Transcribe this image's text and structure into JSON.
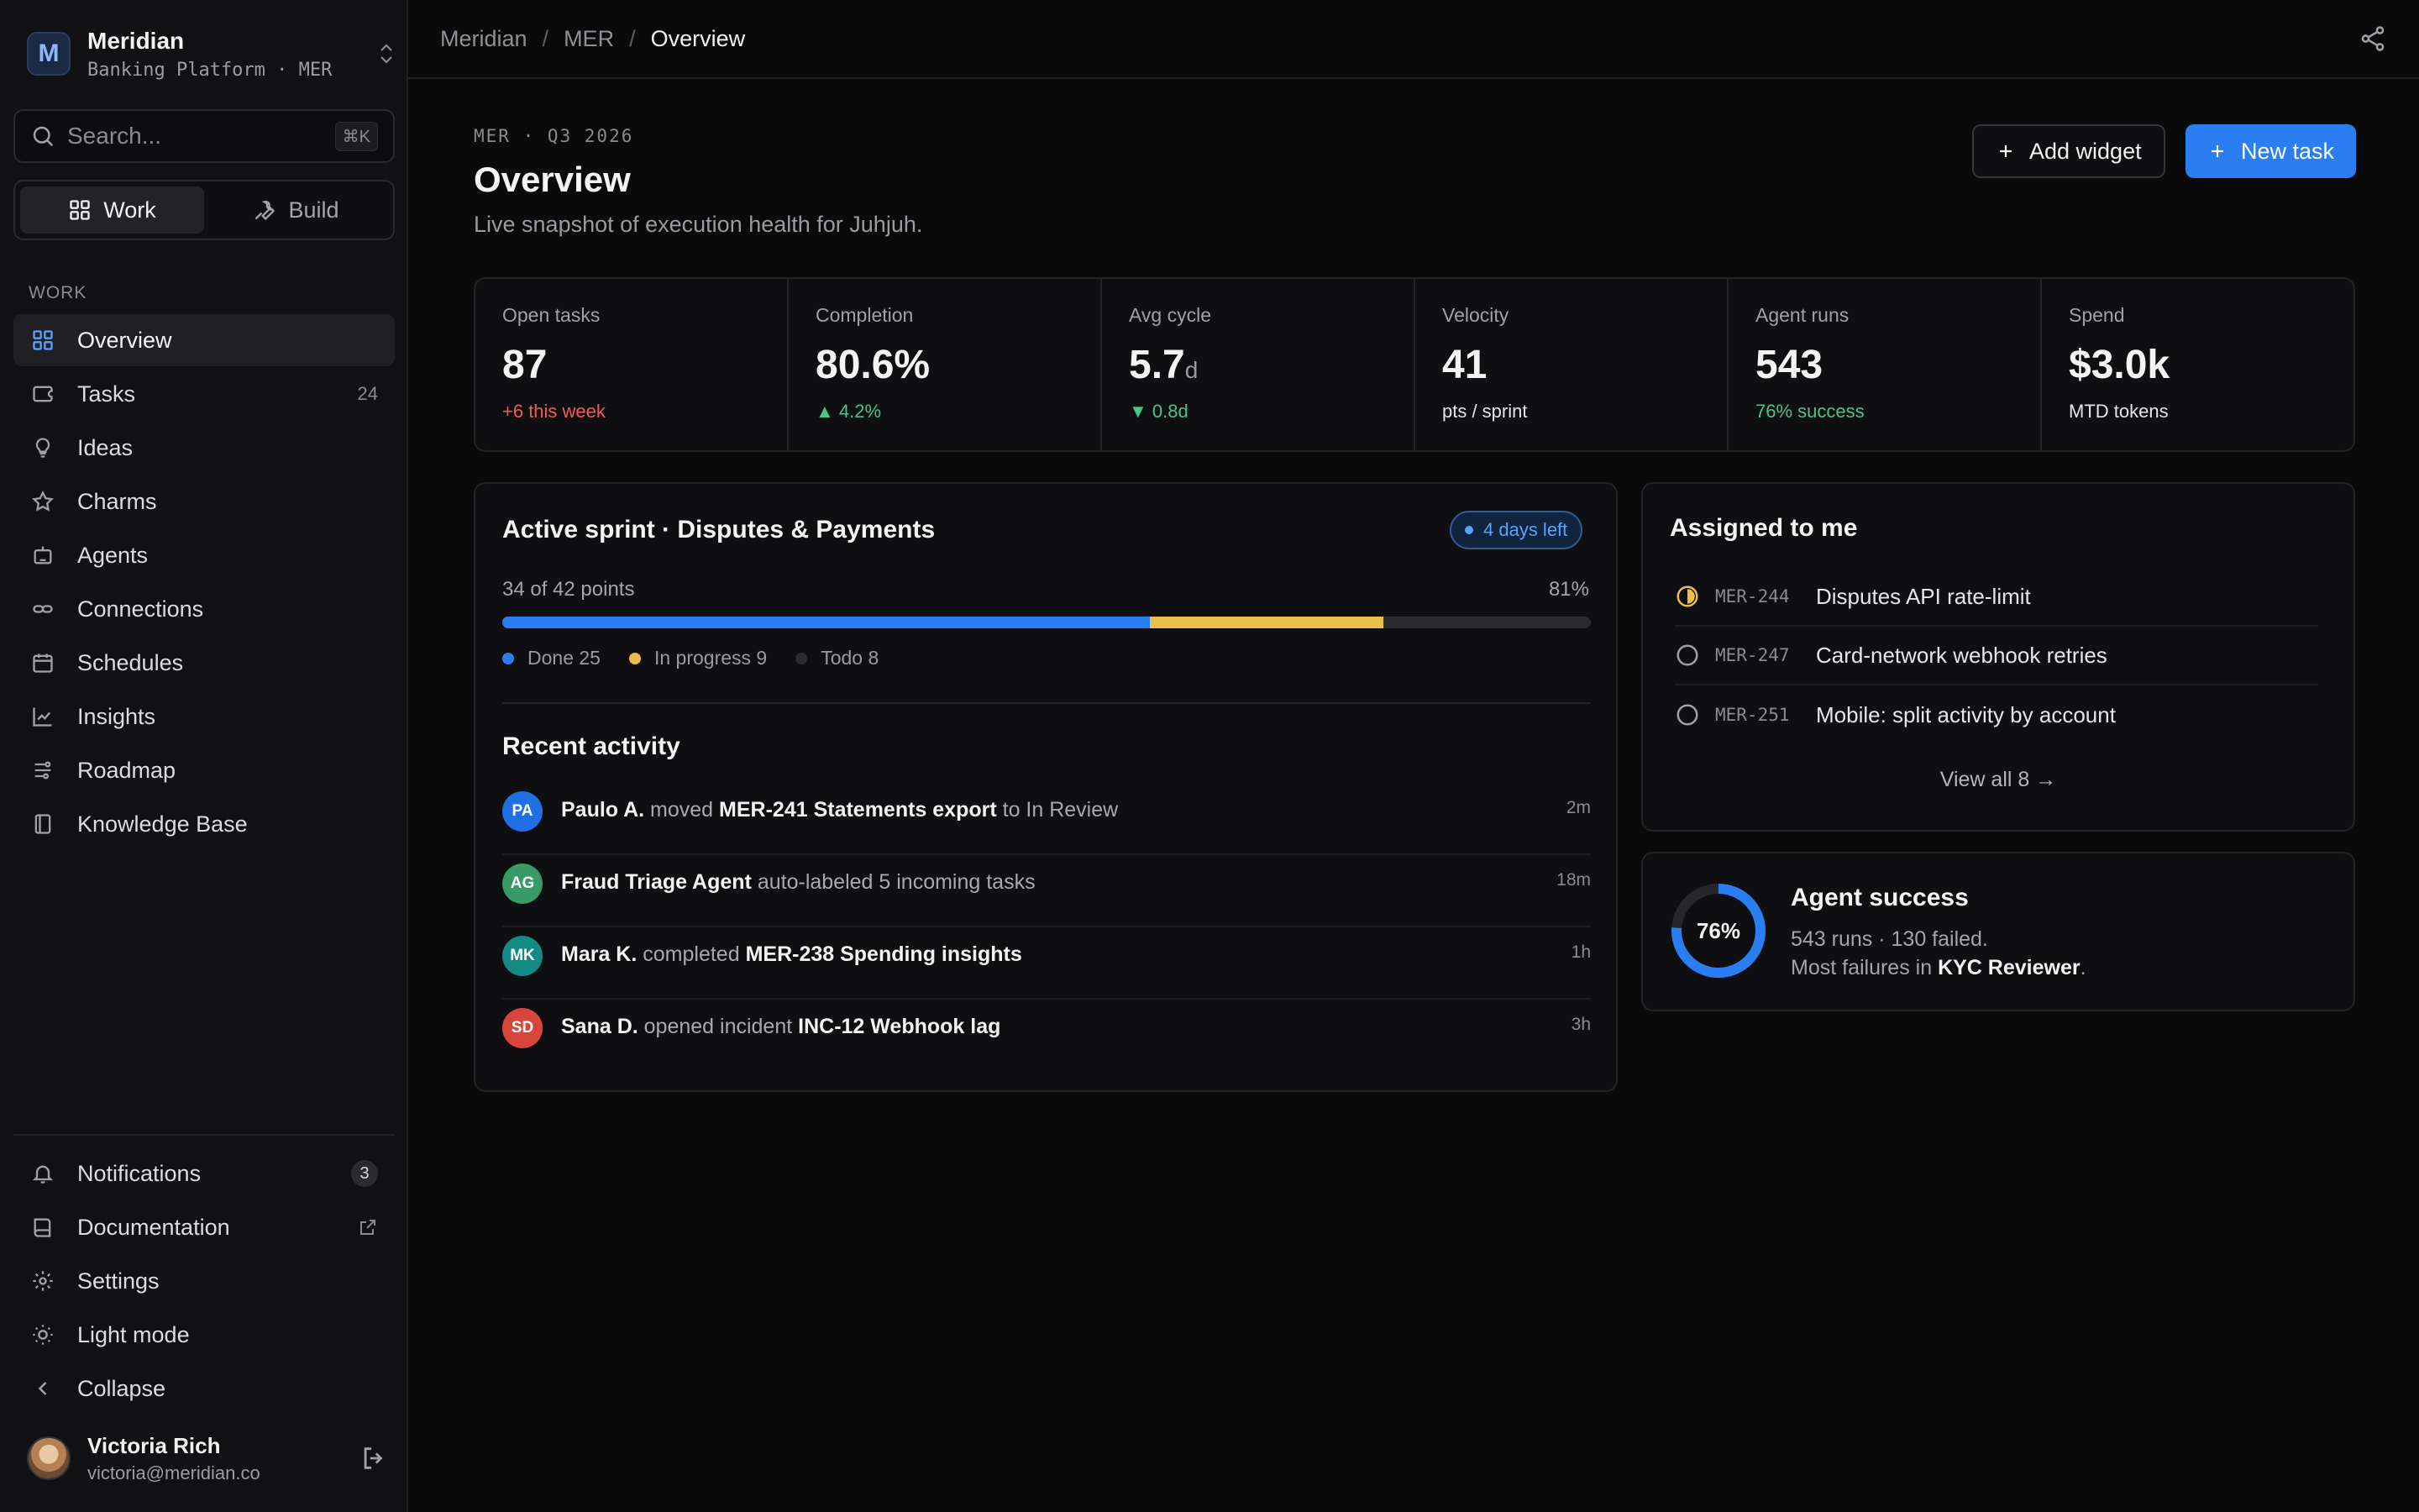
{
  "workspace": {
    "logo_letter": "M",
    "name": "Meridian",
    "subtitle": "Banking Platform · MER"
  },
  "search": {
    "placeholder": "Search...",
    "shortcut": "⌘K"
  },
  "modes": [
    {
      "label": "Work",
      "active": true,
      "icon": "grid-icon"
    },
    {
      "label": "Build",
      "active": false,
      "icon": "wrench-icon"
    }
  ],
  "nav": {
    "section_label": "WORK",
    "items": [
      {
        "label": "Overview",
        "icon": "grid-icon",
        "active": true
      },
      {
        "label": "Tasks",
        "icon": "ticket-icon",
        "count": "24"
      },
      {
        "label": "Ideas",
        "icon": "lightbulb-icon"
      },
      {
        "label": "Charms",
        "icon": "star-icon"
      },
      {
        "label": "Agents",
        "icon": "bot-icon"
      },
      {
        "label": "Connections",
        "icon": "link-icon"
      },
      {
        "label": "Schedules",
        "icon": "calendar-icon"
      },
      {
        "label": "Insights",
        "icon": "line-chart-icon"
      },
      {
        "label": "Roadmap",
        "icon": "roadmap-icon"
      },
      {
        "label": "Knowledge Base",
        "icon": "book-icon"
      }
    ]
  },
  "bottom_nav": [
    {
      "label": "Notifications",
      "icon": "bell-icon",
      "badge": "3"
    },
    {
      "label": "Documentation",
      "icon": "book-open-icon",
      "external": true
    },
    {
      "label": "Settings",
      "icon": "gear-icon"
    },
    {
      "label": "Light mode",
      "icon": "sun-icon"
    },
    {
      "label": "Collapse",
      "icon": "chevron-left-icon"
    }
  ],
  "user": {
    "name": "Victoria Rich",
    "email": "victoria@meridian.co"
  },
  "breadcrumb": [
    "Meridian",
    "MER",
    "Overview"
  ],
  "header": {
    "eyebrow": "MER · Q3 2026",
    "title": "Overview",
    "subtitle": "Live snapshot of execution health for Juhjuh.",
    "add_widget_label": "Add widget",
    "new_task_label": "New task"
  },
  "stats": [
    {
      "label": "Open tasks",
      "value": "87",
      "unit": "",
      "note": "+6 this week",
      "tone": "red"
    },
    {
      "label": "Completion",
      "value": "80.6%",
      "unit": "",
      "note": "▲ 4.2%",
      "tone": "green"
    },
    {
      "label": "Avg cycle",
      "value": "5.7",
      "unit": "d",
      "note": "▼ 0.8d",
      "tone": "green"
    },
    {
      "label": "Velocity",
      "value": "41",
      "unit": "",
      "note": "pts / sprint",
      "tone": "white"
    },
    {
      "label": "Agent runs",
      "value": "543",
      "unit": "",
      "note": "76% success",
      "tone": "green"
    },
    {
      "label": "Spend",
      "value": "$3.0k",
      "unit": "",
      "note": "MTD tokens",
      "tone": "white"
    }
  ],
  "sprint": {
    "title": "Active sprint · Disputes & Payments",
    "days_left": "4 days left",
    "points_label": "34 of 42 points",
    "percent_label": "81%",
    "done": 25,
    "in_progress": 9,
    "todo": 8,
    "legend": [
      {
        "label": "Done 25",
        "color": "#2a7ef2"
      },
      {
        "label": "In progress 9",
        "color": "#e8bf48"
      },
      {
        "label": "Todo 8",
        "color": "#2a2a2f"
      }
    ]
  },
  "activity": {
    "title": "Recent activity",
    "items": [
      {
        "initials": "PA",
        "color": "#1f6fe5",
        "actor": "Paulo A.",
        "verb": " moved ",
        "object": "MER-241 Statements export",
        "tail": " to In Review",
        "time": "2m"
      },
      {
        "initials": "AG",
        "color": "#3a9a66",
        "actor": "Fraud Triage Agent",
        "verb": " auto-labeled 5 incoming tasks",
        "object": "",
        "tail": "",
        "time": "18m"
      },
      {
        "initials": "MK",
        "color": "#138a86",
        "actor": "Mara K.",
        "verb": " completed ",
        "object": "MER-238 Spending insights",
        "tail": "",
        "time": "1h"
      },
      {
        "initials": "SD",
        "color": "#d8453a",
        "actor": "Sana D.",
        "verb": " opened incident ",
        "object": "INC-12 Webhook lag",
        "tail": "",
        "time": "3h"
      }
    ]
  },
  "assigned": {
    "title": "Assigned to me",
    "items": [
      {
        "key": "MER-244",
        "name": "Disputes API rate-limit",
        "status": "in-progress"
      },
      {
        "key": "MER-247",
        "name": "Card-network webhook retries",
        "status": "todo"
      },
      {
        "key": "MER-251",
        "name": "Mobile: split activity by account",
        "status": "todo"
      }
    ],
    "view_all": "View all 8 →"
  },
  "agent_success": {
    "percent": 76,
    "percent_label": "76%",
    "title": "Agent success",
    "line1": "543 runs · 130 failed.",
    "line2_prefix": "Most failures in ",
    "line2_strong": "KYC Reviewer",
    "line2_suffix": "."
  },
  "colors": {
    "accent": "#2a7ef2",
    "warning": "#e8bf48",
    "danger": "#ef5a5a",
    "success": "#4cc38a"
  }
}
